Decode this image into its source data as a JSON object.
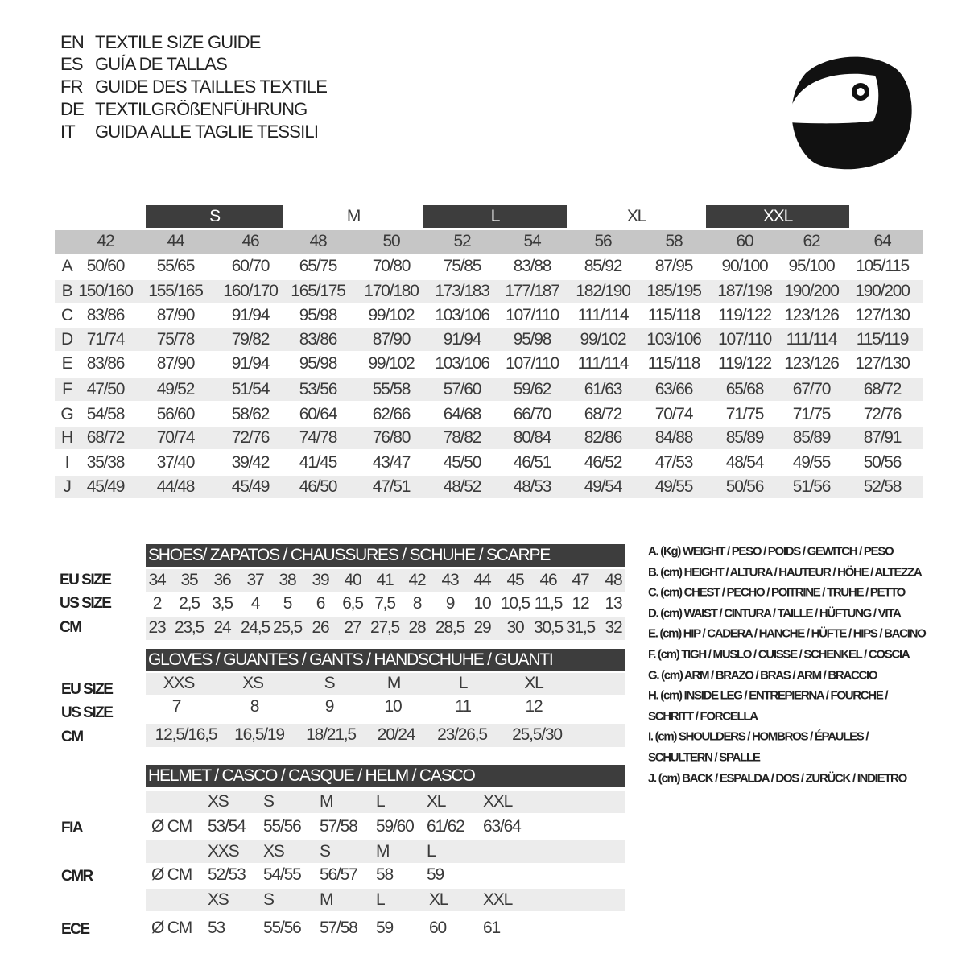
{
  "titles": [
    {
      "code": "EN",
      "text": "TEXTILE SIZE GUIDE"
    },
    {
      "code": "ES",
      "text": "GUÍA DE TALLAS"
    },
    {
      "code": "FR",
      "text": "GUIDE DES TAILLES TEXTILE"
    },
    {
      "code": "DE",
      "text": "TEXTILGRÖßENFÜHRUNG"
    },
    {
      "code": "IT",
      "text": "GUIDA ALLE TAGLIE TESSILI"
    }
  ],
  "logo_icon": "helmet-icon",
  "colors": {
    "dark": "#3d3d3d",
    "header_gray": "#c6c6c6",
    "row_gray": "#ececec"
  },
  "textile": {
    "bands": [
      "S",
      "M",
      "L",
      "XL",
      "XXL"
    ],
    "sizes": [
      "42",
      "44",
      "46",
      "48",
      "50",
      "52",
      "54",
      "56",
      "58",
      "60",
      "62",
      "64"
    ],
    "rows": [
      {
        "label": "A",
        "values": [
          "50/60",
          "55/65",
          "60/70",
          "65/75",
          "70/80",
          "75/85",
          "83/88",
          "85/92",
          "87/95",
          "90/100",
          "95/100",
          "105/115"
        ]
      },
      {
        "label": "B",
        "values": [
          "150/160",
          "155/165",
          "160/170",
          "165/175",
          "170/180",
          "173/183",
          "177/187",
          "182/190",
          "185/195",
          "187/198",
          "190/200",
          "190/200"
        ]
      },
      {
        "label": "C",
        "values": [
          "83/86",
          "87/90",
          "91/94",
          "95/98",
          "99/102",
          "103/106",
          "107/110",
          "111/114",
          "115/118",
          "119/122",
          "123/126",
          "127/130"
        ]
      },
      {
        "label": "D",
        "values": [
          "71/74",
          "75/78",
          "79/82",
          "83/86",
          "87/90",
          "91/94",
          "95/98",
          "99/102",
          "103/106",
          "107/110",
          "111/114",
          "115/119"
        ]
      },
      {
        "label": "E",
        "values": [
          "83/86",
          "87/90",
          "91/94",
          "95/98",
          "99/102",
          "103/106",
          "107/110",
          "111/114",
          "115/118",
          "119/122",
          "123/126",
          "127/130"
        ]
      },
      {
        "label": "F",
        "values": [
          "47/50",
          "49/52",
          "51/54",
          "53/56",
          "55/58",
          "57/60",
          "59/62",
          "61/63",
          "63/66",
          "65/68",
          "67/70",
          "68/72"
        ]
      },
      {
        "label": "G",
        "values": [
          "54/58",
          "56/60",
          "58/62",
          "60/64",
          "62/66",
          "64/68",
          "66/70",
          "68/72",
          "70/74",
          "71/75",
          "71/75",
          "72/76"
        ]
      },
      {
        "label": "H",
        "values": [
          "68/72",
          "70/74",
          "72/76",
          "74/78",
          "76/80",
          "78/82",
          "80/84",
          "82/86",
          "84/88",
          "85/89",
          "85/89",
          "87/91"
        ]
      },
      {
        "label": "I",
        "values": [
          "35/38",
          "37/40",
          "39/42",
          "41/45",
          "43/47",
          "45/50",
          "46/51",
          "46/52",
          "47/53",
          "48/54",
          "49/55",
          "50/56"
        ]
      },
      {
        "label": "J",
        "values": [
          "45/49",
          "44/48",
          "45/49",
          "46/50",
          "47/51",
          "48/52",
          "48/53",
          "49/54",
          "49/55",
          "50/56",
          "51/56",
          "52/58"
        ]
      }
    ]
  },
  "shoes": {
    "title": "SHOES/ ZAPATOS / CHAUSSURES / SCHUHE / SCARPE",
    "rows": [
      {
        "label": "EU SIZE",
        "values": [
          "34",
          "35",
          "36",
          "37",
          "38",
          "39",
          "40",
          "41",
          "42",
          "43",
          "44",
          "45",
          "46",
          "47",
          "48"
        ]
      },
      {
        "label": "US SIZE",
        "values": [
          "2",
          "2,5",
          "3,5",
          "4",
          "5",
          "6",
          "6,5",
          "7,5",
          "8",
          "9",
          "10",
          "10,5",
          "11,5",
          "12",
          "13"
        ]
      },
      {
        "label": "CM",
        "values": [
          "23",
          "23,5",
          "24",
          "24,5",
          "25,5",
          "26",
          "27",
          "27,5",
          "28",
          "28,5",
          "29",
          "30",
          "30,5",
          "31,5",
          "32"
        ]
      }
    ]
  },
  "gloves": {
    "title": "GLOVES / GUANTES / GANTS / HANDSCHUHE / GUANTI",
    "rows": [
      {
        "label": "EU SIZE",
        "values": [
          "XXS",
          "XS",
          "S",
          "M",
          "L",
          "XL"
        ]
      },
      {
        "label": "US SIZE",
        "values": [
          "7",
          "8",
          "9",
          "10",
          "11",
          "12"
        ]
      },
      {
        "label": "CM",
        "values": [
          "12,5/16,5",
          "16,5/19",
          "18/21,5",
          "20/24",
          "23/26,5",
          "25,5/30"
        ]
      }
    ]
  },
  "helmet": {
    "title": "HELMET / CASCO / CASQUE / HELM / CASCO",
    "unit": "Ø CM",
    "standards": [
      {
        "label": "FIA",
        "sizes": [
          "XS",
          "S",
          "M",
          "L",
          "XL",
          "XXL"
        ],
        "values": [
          "53/54",
          "55/56",
          "57/58",
          "59/60",
          "61/62",
          "63/64"
        ]
      },
      {
        "label": "CMR",
        "sizes": [
          "XXS",
          "XS",
          "S",
          "M",
          "L"
        ],
        "values": [
          "52/53",
          "54/55",
          "56/57",
          "58",
          "59"
        ]
      },
      {
        "label": "ECE",
        "sizes": [
          "XS",
          "S",
          "M",
          "L",
          "XL",
          "XXL"
        ],
        "values": [
          "53",
          "55/56",
          "57/58",
          "59",
          "60",
          "61"
        ]
      }
    ]
  },
  "legend": [
    "A. (Kg) WEIGHT / PESO / POIDS / GEWITCH / PESO",
    "B. (cm) HEIGHT / ALTURA / HAUTEUR / HÖHE / ALTEZZA",
    "C. (cm) CHEST / PECHO / POITRINE / TRUHE / PETTO",
    "D. (cm) WAIST / CINTURA / TAILLE / HÜFTUNG / VITA",
    "E. (cm) HIP / CADERA / HANCHE / HÜFTE / HIPS /  BACINO",
    "F.  (cm) TIGH / MUSLO / CUISSE / SCHENKEL / COSCIA",
    "G. (cm) ARM  / BRAZO / BRAS / ARM / BRACCIO",
    "H. (cm) INSIDE LEG / ENTREPIERNA / FOURCHE /",
    "SCHRITT / FORCELLA",
    "I.  (cm) SHOULDERS / HOMBROS / ÉPAULES /",
    "SCHULTERN / SPALLE",
    "J. (cm) BACK / ESPALDA / DOS / ZURÜCK / INDIETRO"
  ]
}
